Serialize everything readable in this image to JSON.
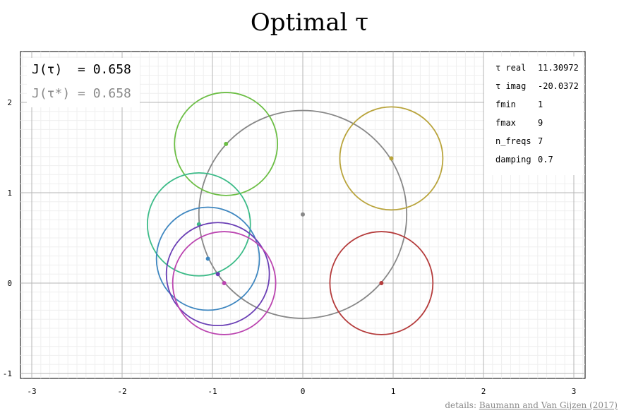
{
  "title": "Optimal τ",
  "chart_data": {
    "type": "scatter",
    "xlim": [
      -3.1,
      3.1
    ],
    "ylim": [
      -1.05,
      2.55
    ],
    "x_ticks": [
      -3,
      -2,
      -1,
      0,
      1,
      2,
      3
    ],
    "y_ticks": [
      -1,
      0,
      1,
      2
    ],
    "grid": true,
    "big_circle": {
      "cx": 0.0,
      "cy": 0.76,
      "r": 1.15,
      "color": "#888888"
    },
    "circles": [
      {
        "cx": 0.87,
        "cy": 0.0,
        "r": 0.57,
        "color": "#b53c3c",
        "dot": [
          0.87,
          0.0
        ]
      },
      {
        "cx": 0.98,
        "cy": 1.38,
        "r": 0.57,
        "color": "#b9a43c",
        "dot": [
          0.98,
          1.38
        ]
      },
      {
        "cx": -0.85,
        "cy": 1.54,
        "r": 0.57,
        "color": "#6cbe45",
        "dot": [
          -0.85,
          1.54
        ]
      },
      {
        "cx": -1.15,
        "cy": 0.65,
        "r": 0.57,
        "color": "#3cbb88",
        "dot": [
          -1.15,
          0.65
        ]
      },
      {
        "cx": -1.05,
        "cy": 0.27,
        "r": 0.57,
        "color": "#3f87c0",
        "dot": [
          -1.05,
          0.27
        ]
      },
      {
        "cx": -0.94,
        "cy": 0.1,
        "r": 0.57,
        "color": "#6a3fb5",
        "dot": [
          -0.94,
          0.1
        ]
      },
      {
        "cx": -0.87,
        "cy": 0.0,
        "r": 0.57,
        "color": "#bb45b0",
        "dot": [
          -0.87,
          0.0
        ]
      }
    ]
  },
  "J_current": {
    "label": "J(τ)  =",
    "value": "0.658"
  },
  "J_optimal": {
    "label": "J(τ*) =",
    "value": "0.658"
  },
  "params": [
    {
      "key": "τ real",
      "value": "11.30972"
    },
    {
      "key": "τ imag",
      "value": "-20.0372"
    },
    {
      "key": "fmin",
      "value": "1"
    },
    {
      "key": "fmax",
      "value": "9"
    },
    {
      "key": "n_freqs",
      "value": "7"
    },
    {
      "key": "damping",
      "value": "0.7"
    }
  ],
  "footer": {
    "prefix": "details: ",
    "link_text": "Baumann and Van Gijzen (2017)"
  }
}
